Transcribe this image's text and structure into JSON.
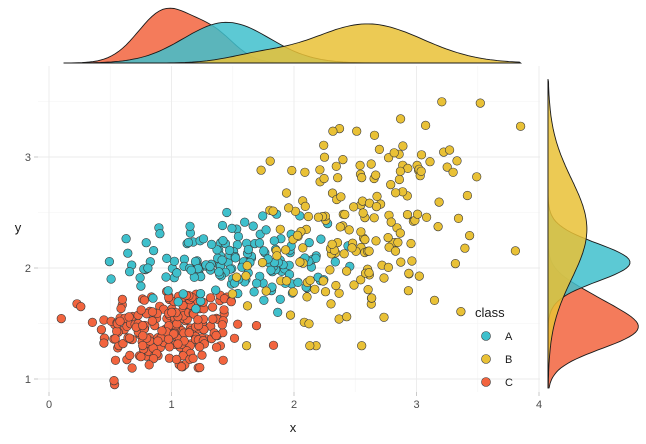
{
  "chart_data": {
    "type": "scatter",
    "title": "",
    "xlabel": "x",
    "ylabel": "y",
    "xlim": [
      0,
      4
    ],
    "ylim": [
      0.9,
      3.75
    ],
    "x_ticks": [
      0,
      1,
      2,
      3,
      4
    ],
    "y_ticks": [
      1,
      2,
      3
    ],
    "x_tick_labels": [
      "0",
      "1",
      "2",
      "3",
      "4"
    ],
    "y_tick_labels": [
      "1",
      "2",
      "3"
    ],
    "grid": true,
    "legend": {
      "title": "class",
      "position": "bottom-right-inside",
      "entries": [
        "A",
        "B",
        "C"
      ]
    },
    "marginals": {
      "top": "density of x by class",
      "right": "density of y by class"
    },
    "series": [
      {
        "name": "A",
        "color": "#3fc0cc",
        "n": 170,
        "x_center": 1.5,
        "x_spread": 0.4,
        "y_center": 2.05,
        "y_spread": 0.18
      },
      {
        "name": "B",
        "color": "#e9c136",
        "n": 190,
        "x_center": 2.55,
        "x_spread": 0.45,
        "y_center": 2.35,
        "y_spread": 0.45
      },
      {
        "name": "C",
        "color": "#f2643e",
        "n": 220,
        "x_center": 1.0,
        "x_spread": 0.3,
        "y_center": 1.45,
        "y_spread": 0.2
      }
    ]
  }
}
